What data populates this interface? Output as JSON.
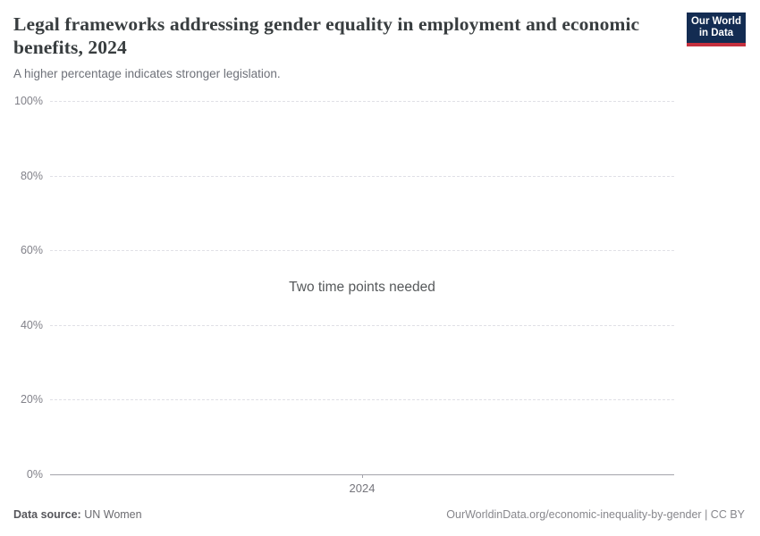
{
  "header": {
    "title": "Legal frameworks addressing gender equality in employment and economic benefits, 2024",
    "subtitle": "A higher percentage indicates stronger legislation."
  },
  "logo": {
    "line1": "Our World",
    "line2": "in Data",
    "bg_color": "#132c52",
    "accent_color": "#c5303e"
  },
  "chart_data": {
    "type": "line",
    "title": "Legal frameworks addressing gender equality in employment and economic benefits, 2024",
    "subtitle": "A higher percentage indicates stronger legislation.",
    "message": "Two time points needed",
    "series": [],
    "x": [
      2024
    ],
    "x_ticks": [
      {
        "label": "2024",
        "position": 0.5
      }
    ],
    "y_ticks": [
      {
        "label": "0%",
        "value": 0
      },
      {
        "label": "20%",
        "value": 20
      },
      {
        "label": "40%",
        "value": 40
      },
      {
        "label": "60%",
        "value": 60
      },
      {
        "label": "80%",
        "value": 80
      },
      {
        "label": "100%",
        "value": 100
      }
    ],
    "ylim": [
      0,
      100
    ],
    "xlabel": "",
    "ylabel": "",
    "grid": "horizontal-dashed",
    "legend": "none"
  },
  "footer": {
    "source_label": "Data source:",
    "source_value": "UN Women",
    "url_text": "OurWorldinData.org/economic-inequality-by-gender",
    "divider": " | ",
    "license_text": "CC BY"
  }
}
